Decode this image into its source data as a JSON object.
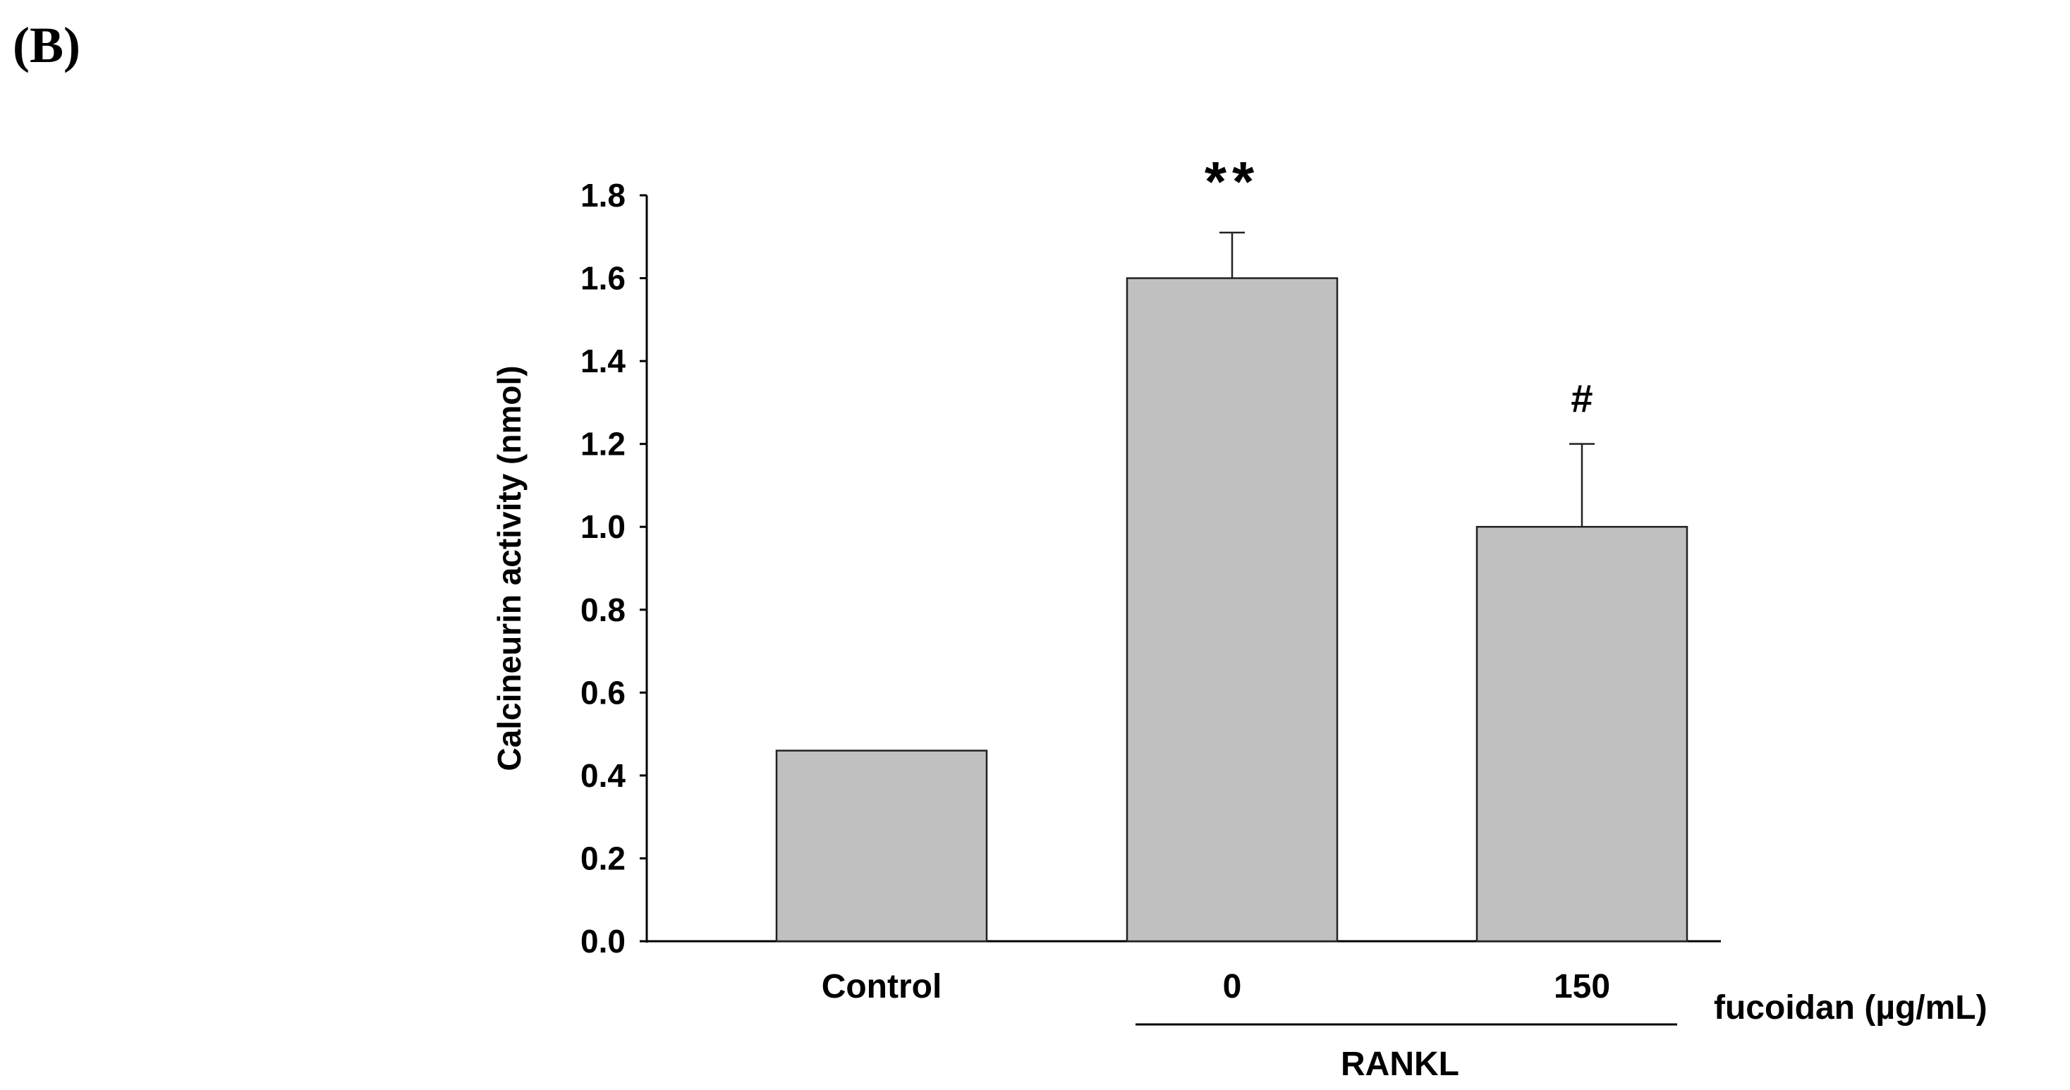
{
  "panel_label": "(B)",
  "chart_data": {
    "type": "bar",
    "title": "",
    "xlabel": "",
    "ylabel": "Calcineurin activity (nmol)",
    "ylim": [
      0,
      1.8
    ],
    "yticks": [
      "0.0",
      "0.2",
      "0.4",
      "0.6",
      "0.8",
      "1.0",
      "1.2",
      "1.4",
      "1.6",
      "1.8"
    ],
    "categories": [
      "Control",
      "0",
      "150"
    ],
    "values": [
      0.46,
      1.6,
      1.0
    ],
    "error_upper": [
      null,
      1.71,
      1.2
    ],
    "annotations": [
      "",
      "**",
      "#"
    ],
    "grid": false,
    "bar_color": "#c0c0c0",
    "x_unit_label": "fucoidan (µg/mL)",
    "group_label": "RANKL"
  }
}
